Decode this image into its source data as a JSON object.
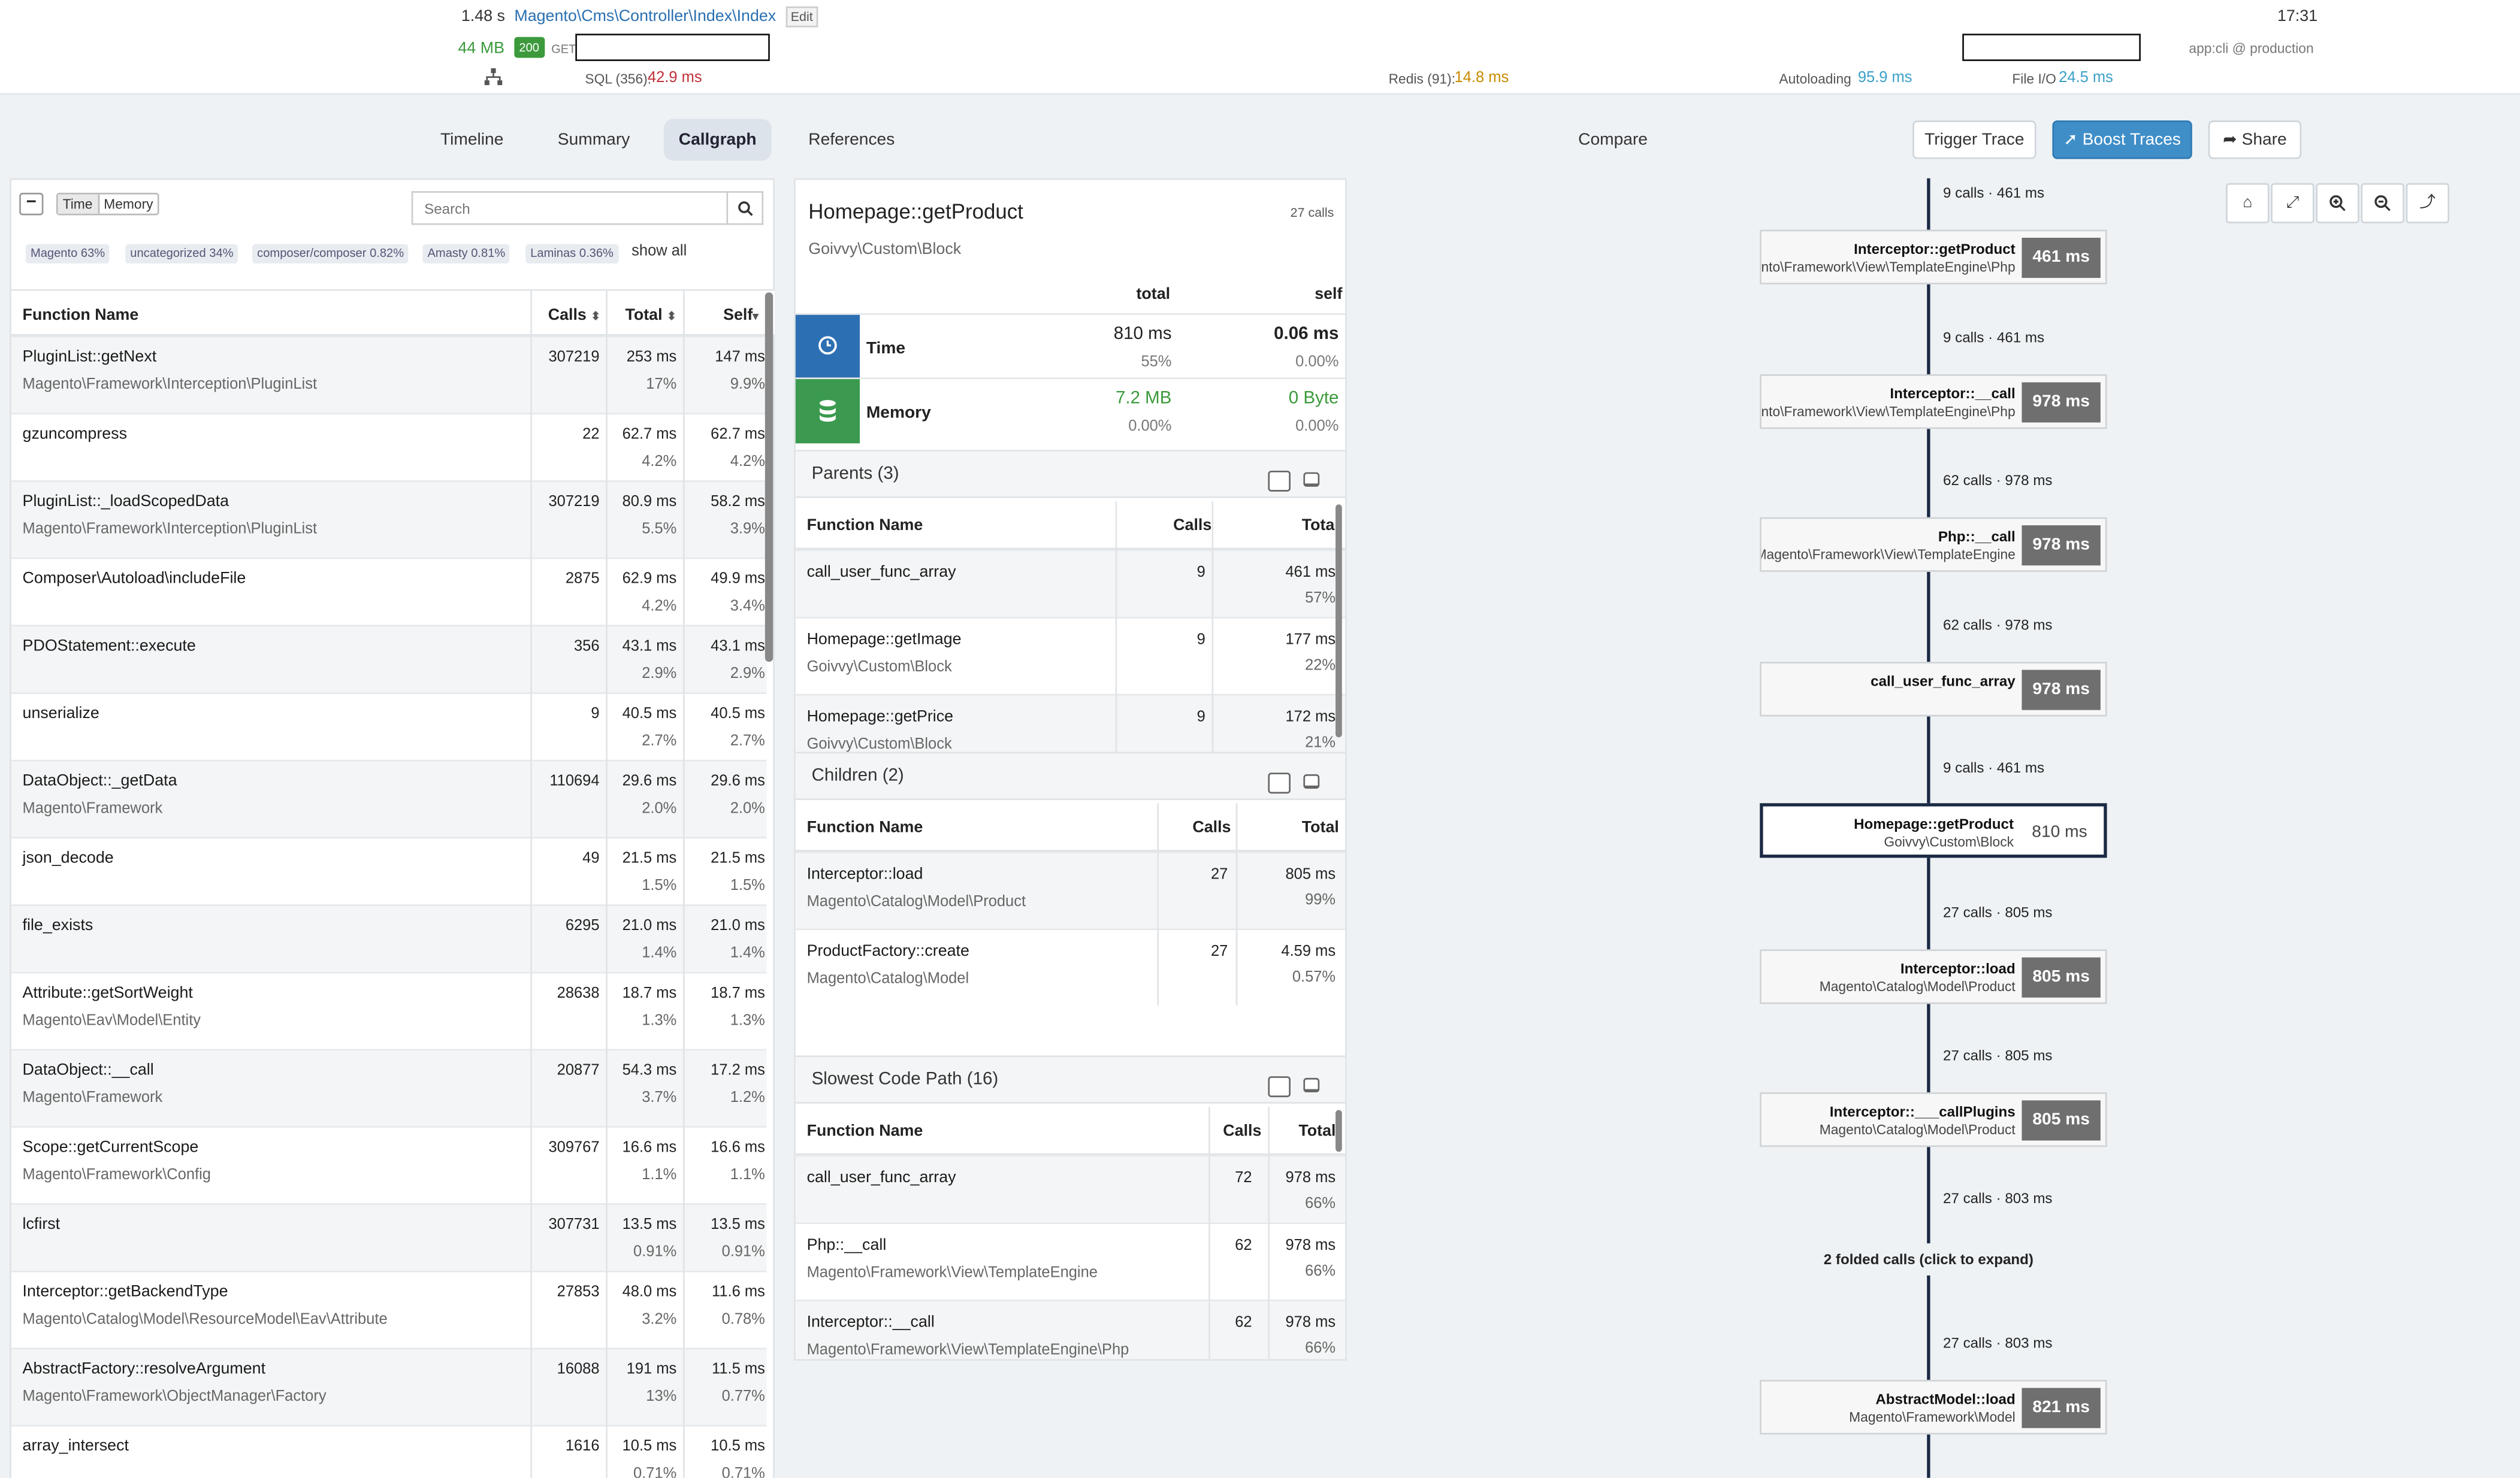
{
  "header": {
    "wall_time": "1.48 s",
    "controller": "Magento\\Cms\\Controller\\Index\\Index",
    "edit_label": "Edit",
    "memory": "44 MB",
    "status_code": "200",
    "method": "GET",
    "clock": "17:31",
    "env": "app:cli @ production",
    "sql_label": "SQL (356):",
    "sql_value": "42.9 ms",
    "redis_label": "Redis (91):",
    "redis_value": "14.8 ms",
    "autoload_label": "Autoloading",
    "autoload_value": "95.9 ms",
    "fileio_label": "File I/O",
    "fileio_value": "24.5 ms"
  },
  "tabs": [
    "Timeline",
    "Summary",
    "Callgraph",
    "References"
  ],
  "active_tab": "Callgraph",
  "compare_label": "Compare",
  "actions": {
    "trigger": "Trigger Trace",
    "boost": "Boost Traces",
    "share": "Share"
  },
  "toolbar": {
    "minus": "−",
    "time": "Time",
    "memory": "Memory",
    "search_placeholder": "Search"
  },
  "categories": [
    {
      "name": "Magento",
      "pct": "63%"
    },
    {
      "name": "uncategorized",
      "pct": "34%"
    },
    {
      "name": "composer/composer",
      "pct": "0.82%"
    },
    {
      "name": "Amasty",
      "pct": "0.81%"
    },
    {
      "name": "Laminas",
      "pct": "0.36%"
    }
  ],
  "show_all": "show all",
  "functions": {
    "headers": {
      "name": "Function Name",
      "calls": "Calls",
      "total": "Total",
      "self": "Self"
    },
    "rows": [
      {
        "name": "PluginList::getNext",
        "ns": "Magento\\Framework\\Interception\\PluginList",
        "calls": "307219",
        "total": "253 ms",
        "total_pct": "17%",
        "self": "147 ms",
        "self_pct": "9.9%"
      },
      {
        "name": "gzuncompress",
        "ns": "",
        "calls": "22",
        "total": "62.7 ms",
        "total_pct": "4.2%",
        "self": "62.7 ms",
        "self_pct": "4.2%"
      },
      {
        "name": "PluginList::_loadScopedData",
        "ns": "Magento\\Framework\\Interception\\PluginList",
        "calls": "307219",
        "total": "80.9 ms",
        "total_pct": "5.5%",
        "self": "58.2 ms",
        "self_pct": "3.9%"
      },
      {
        "name": "Composer\\Autoload\\includeFile",
        "ns": "",
        "calls": "2875",
        "total": "62.9 ms",
        "total_pct": "4.2%",
        "self": "49.9 ms",
        "self_pct": "3.4%"
      },
      {
        "name": "PDOStatement::execute",
        "ns": "",
        "calls": "356",
        "total": "43.1 ms",
        "total_pct": "2.9%",
        "self": "43.1 ms",
        "self_pct": "2.9%"
      },
      {
        "name": "unserialize",
        "ns": "",
        "calls": "9",
        "total": "40.5 ms",
        "total_pct": "2.7%",
        "self": "40.5 ms",
        "self_pct": "2.7%"
      },
      {
        "name": "DataObject::_getData",
        "ns": "Magento\\Framework",
        "calls": "110694",
        "total": "29.6 ms",
        "total_pct": "2.0%",
        "self": "29.6 ms",
        "self_pct": "2.0%"
      },
      {
        "name": "json_decode",
        "ns": "",
        "calls": "49",
        "total": "21.5 ms",
        "total_pct": "1.5%",
        "self": "21.5 ms",
        "self_pct": "1.5%"
      },
      {
        "name": "file_exists",
        "ns": "",
        "calls": "6295",
        "total": "21.0 ms",
        "total_pct": "1.4%",
        "self": "21.0 ms",
        "self_pct": "1.4%"
      },
      {
        "name": "Attribute::getSortWeight",
        "ns": "Magento\\Eav\\Model\\Entity",
        "calls": "28638",
        "total": "18.7 ms",
        "total_pct": "1.3%",
        "self": "18.7 ms",
        "self_pct": "1.3%"
      },
      {
        "name": "DataObject::__call",
        "ns": "Magento\\Framework",
        "calls": "20877",
        "total": "54.3 ms",
        "total_pct": "3.7%",
        "self": "17.2 ms",
        "self_pct": "1.2%"
      },
      {
        "name": "Scope::getCurrentScope",
        "ns": "Magento\\Framework\\Config",
        "calls": "309767",
        "total": "16.6 ms",
        "total_pct": "1.1%",
        "self": "16.6 ms",
        "self_pct": "1.1%"
      },
      {
        "name": "lcfirst",
        "ns": "",
        "calls": "307731",
        "total": "13.5 ms",
        "total_pct": "0.91%",
        "self": "13.5 ms",
        "self_pct": "0.91%"
      },
      {
        "name": "Interceptor::getBackendType",
        "ns": "Magento\\Catalog\\Model\\ResourceModel\\Eav\\Attribute",
        "calls": "27853",
        "total": "48.0 ms",
        "total_pct": "3.2%",
        "self": "11.6 ms",
        "self_pct": "0.78%"
      },
      {
        "name": "AbstractFactory::resolveArgument",
        "ns": "Magento\\Framework\\ObjectManager\\Factory",
        "calls": "16088",
        "total": "191 ms",
        "total_pct": "13%",
        "self": "11.5 ms",
        "self_pct": "0.77%"
      },
      {
        "name": "array_intersect",
        "ns": "",
        "calls": "1616",
        "total": "10.5 ms",
        "total_pct": "0.71%",
        "self": "10.5 ms",
        "self_pct": "0.71%"
      }
    ]
  },
  "detail": {
    "title": "Homepage::getProduct",
    "calls": "27 calls",
    "ns": "Goivvy\\Custom\\Block",
    "col_total": "total",
    "col_self": "self",
    "time": {
      "label": "Time",
      "total": "810 ms",
      "total_pct": "55%",
      "self": "0.06 ms",
      "self_pct": "0.00%"
    },
    "memory": {
      "label": "Memory",
      "total": "7.2 MB",
      "total_pct": "0.00%",
      "self": "0 Byte",
      "self_pct": "0.00%"
    },
    "parents": {
      "title": "Parents (3)",
      "headers": [
        "Function Name",
        "Calls",
        "Total"
      ],
      "rows": [
        {
          "name": "call_user_func_array",
          "ns": "",
          "calls": "9",
          "total": "461 ms",
          "pct": "57%"
        },
        {
          "name": "Homepage::getImage",
          "ns": "Goivvy\\Custom\\Block",
          "calls": "9",
          "total": "177 ms",
          "pct": "22%"
        },
        {
          "name": "Homepage::getPrice",
          "ns": "Goivvy\\Custom\\Block",
          "calls": "9",
          "total": "172 ms",
          "pct": "21%"
        }
      ]
    },
    "children": {
      "title": "Children (2)",
      "headers": [
        "Function Name",
        "Calls",
        "Total"
      ],
      "rows": [
        {
          "name": "Interceptor::load",
          "ns": "Magento\\Catalog\\Model\\Product",
          "calls": "27",
          "total": "805 ms",
          "pct": "99%"
        },
        {
          "name": "ProductFactory::create",
          "ns": "Magento\\Catalog\\Model",
          "calls": "27",
          "total": "4.59 ms",
          "pct": "0.57%"
        }
      ]
    },
    "slowest": {
      "title": "Slowest Code Path (16)",
      "headers": [
        "Function Name",
        "Calls",
        "Total"
      ],
      "rows": [
        {
          "name": "call_user_func_array",
          "ns": "",
          "calls": "72",
          "total": "978 ms",
          "pct": "66%"
        },
        {
          "name": "Php::__call",
          "ns": "Magento\\Framework\\View\\TemplateEngine",
          "calls": "62",
          "total": "978 ms",
          "pct": "66%"
        },
        {
          "name": "Interceptor::__call",
          "ns": "Magento\\Framework\\View\\TemplateEngine\\Php",
          "calls": "62",
          "total": "978 ms",
          "pct": "66%"
        }
      ]
    }
  },
  "graph": {
    "nodes": [
      {
        "name": "Interceptor::getProduct",
        "ns": "Magento\\Framework\\View\\TemplateEngine\\Php",
        "value": "461 ms"
      },
      {
        "name": "Interceptor::__call",
        "ns": "Magento\\Framework\\View\\TemplateEngine\\Php",
        "value": "978 ms"
      },
      {
        "name": "Php::__call",
        "ns": "Magento\\Framework\\View\\TemplateEngine",
        "value": "978 ms"
      },
      {
        "name": "call_user_func_array",
        "ns": "",
        "value": "978 ms"
      },
      {
        "name": "Homepage::getProduct",
        "ns": "Goivvy\\Custom\\Block",
        "value": "810 ms"
      },
      {
        "name": "Interceptor::load",
        "ns": "Magento\\Catalog\\Model\\Product",
        "value": "805 ms"
      },
      {
        "name": "Interceptor::___callPlugins",
        "ns": "Magento\\Catalog\\Model\\Product",
        "value": "805 ms"
      },
      {
        "name": "AbstractModel::load",
        "ns": "Magento\\Framework\\Model",
        "value": "821 ms"
      }
    ],
    "edges": [
      "9 calls · 461 ms",
      "9 calls · 461 ms",
      "62 calls · 978 ms",
      "62 calls · 978 ms",
      "9 calls · 461 ms",
      "27 calls · 805 ms",
      "27 calls · 805 ms",
      "27 calls · 803 ms",
      "27 calls · 803 ms"
    ],
    "folded": "2 folded calls (click to expand)"
  }
}
